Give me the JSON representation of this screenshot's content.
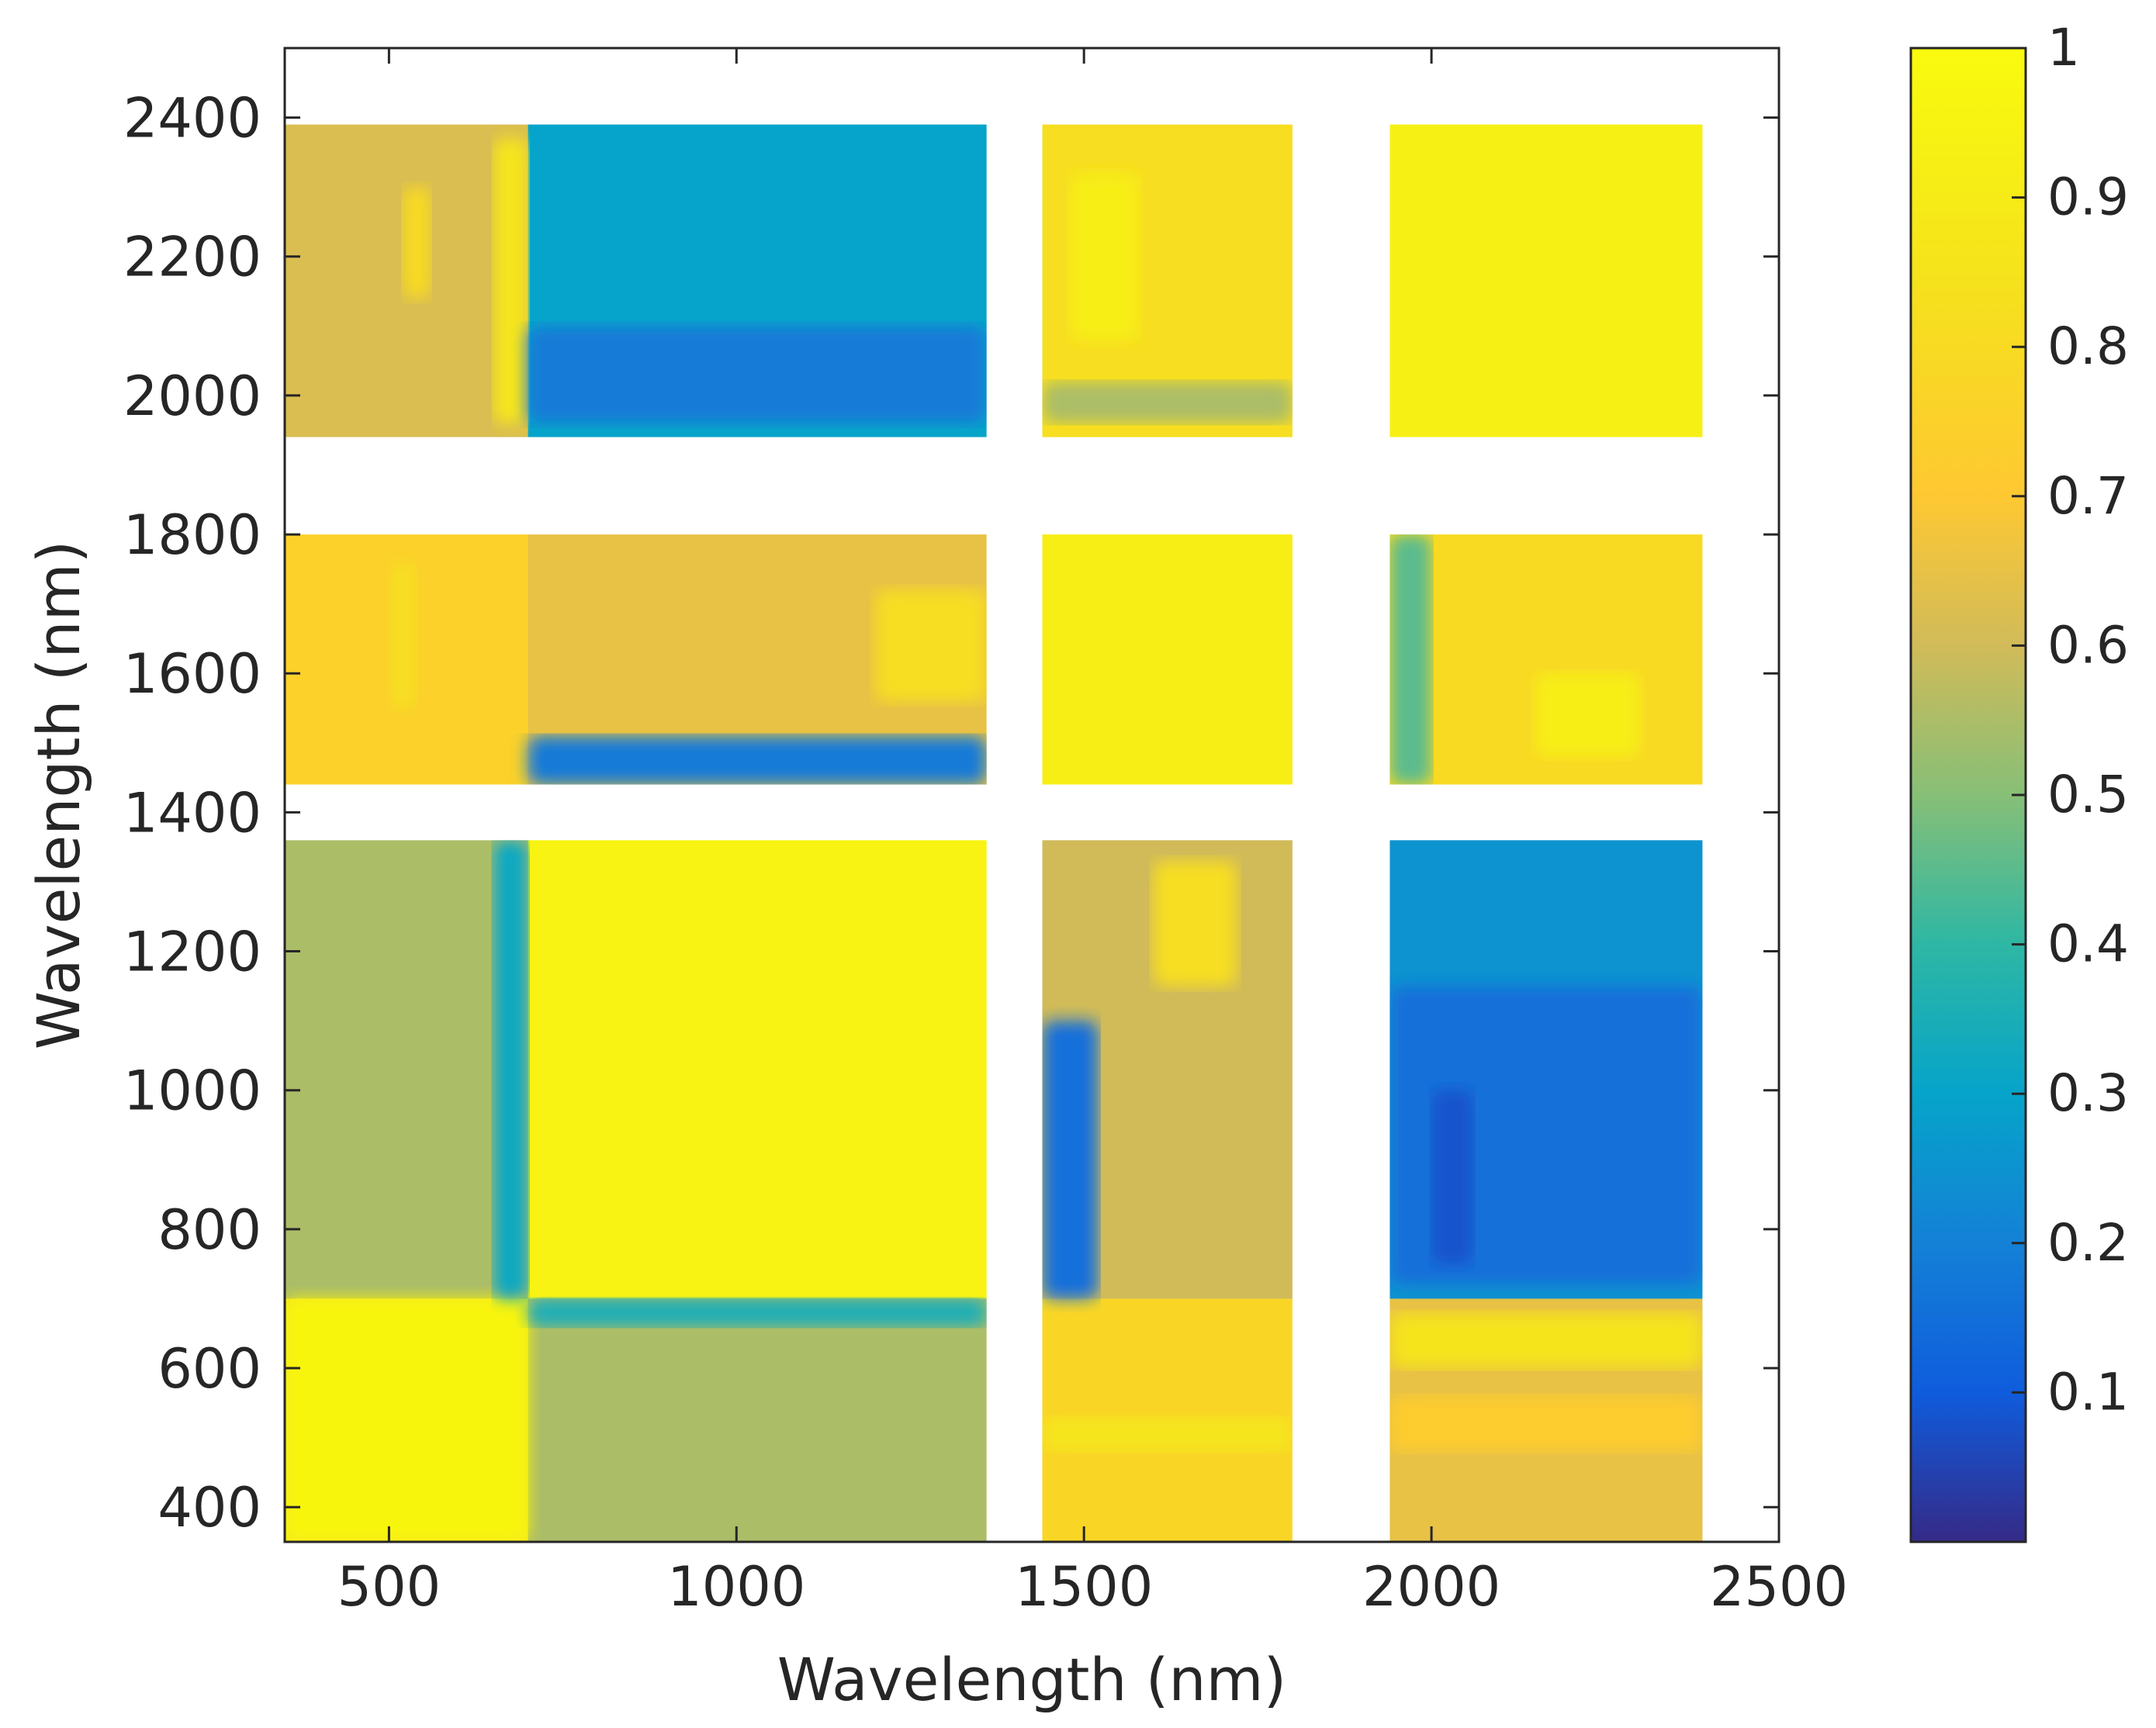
{
  "chart_data": {
    "type": "heatmap",
    "title": "",
    "xlabel": "Wavelength (nm)",
    "ylabel": "Wavelength (nm)",
    "xlim": [
      350,
      2500
    ],
    "ylim": [
      350,
      2500
    ],
    "x_ticks": [
      500,
      1000,
      1500,
      2000,
      2500
    ],
    "y_ticks": [
      400,
      600,
      800,
      1000,
      1200,
      1400,
      1600,
      1800,
      2000,
      2200,
      2400
    ],
    "colorbar": {
      "range": [
        0,
        1
      ],
      "ticks": [
        0.1,
        0.2,
        0.3,
        0.4,
        0.5,
        0.6,
        0.7,
        0.8,
        0.9,
        1
      ],
      "tick_labels": [
        "0.1",
        "0.2",
        "0.3",
        "0.4",
        "0.5",
        "0.6",
        "0.7",
        "0.8",
        "0.9",
        "1"
      ],
      "colormap": "parula"
    },
    "bands_nm": [
      [
        350,
        1360
      ],
      [
        1440,
        1800
      ],
      [
        1940,
        2390
      ]
    ],
    "cells": [
      {
        "x": [
          350,
          700
        ],
        "y": [
          350,
          700
        ],
        "value": 0.88
      },
      {
        "x": [
          700,
          1360
        ],
        "y": [
          350,
          700
        ],
        "value": 0.55
      },
      {
        "x": [
          1440,
          1800
        ],
        "y": [
          350,
          700
        ],
        "value": 0.78
      },
      {
        "x": [
          1940,
          2390
        ],
        "y": [
          350,
          700
        ],
        "value": 0.65
      },
      {
        "x": [
          350,
          700
        ],
        "y": [
          700,
          1360
        ],
        "value": 0.55
      },
      {
        "x": [
          700,
          1360
        ],
        "y": [
          700,
          1360
        ],
        "value": 0.95
      },
      {
        "x": [
          1440,
          1800
        ],
        "y": [
          700,
          1360
        ],
        "value": 0.6
      },
      {
        "x": [
          1940,
          2390
        ],
        "y": [
          700,
          1360
        ],
        "value": 0.25
      },
      {
        "x": [
          350,
          700
        ],
        "y": [
          1440,
          1800
        ],
        "value": 0.75
      },
      {
        "x": [
          700,
          1360
        ],
        "y": [
          1440,
          1800
        ],
        "value": 0.65
      },
      {
        "x": [
          1440,
          1800
        ],
        "y": [
          1440,
          1800
        ],
        "value": 0.92
      },
      {
        "x": [
          1940,
          2390
        ],
        "y": [
          1440,
          1800
        ],
        "value": 0.8
      },
      {
        "x": [
          350,
          700
        ],
        "y": [
          1940,
          2390
        ],
        "value": 0.62
      },
      {
        "x": [
          700,
          1360
        ],
        "y": [
          1940,
          2390
        ],
        "value": 0.3
      },
      {
        "x": [
          1440,
          1800
        ],
        "y": [
          1940,
          2390
        ],
        "value": 0.82
      },
      {
        "x": [
          1940,
          2390
        ],
        "y": [
          1940,
          2390
        ],
        "value": 0.93
      }
    ],
    "features": [
      {
        "x": [
          350,
          700
        ],
        "y": [
          350,
          700
        ],
        "value": 0.96
      },
      {
        "x": [
          500,
          540
        ],
        "y": [
          1550,
          1760
        ],
        "value": 0.82
      },
      {
        "x": [
          520,
          560
        ],
        "y": [
          2140,
          2300
        ],
        "value": 0.8
      },
      {
        "x": [
          650,
          700
        ],
        "y": [
          1960,
          2370
        ],
        "value": 0.86
      },
      {
        "x": [
          650,
          700
        ],
        "y": [
          700,
          1360
        ],
        "value": 0.32
      },
      {
        "x": [
          700,
          1360
        ],
        "y": [
          1440,
          1510
        ],
        "value": 0.18
      },
      {
        "x": [
          700,
          1360
        ],
        "y": [
          1960,
          2100
        ],
        "value": 0.18
      },
      {
        "x": [
          700,
          1360
        ],
        "y": [
          660,
          700
        ],
        "value": 0.35
      },
      {
        "x": [
          1200,
          1360
        ],
        "y": [
          1560,
          1720
        ],
        "value": 0.82
      },
      {
        "x": [
          1440,
          1520
        ],
        "y": [
          700,
          1100
        ],
        "value": 0.15
      },
      {
        "x": [
          1600,
          1720
        ],
        "y": [
          1150,
          1330
        ],
        "value": 0.82
      },
      {
        "x": [
          1440,
          1800
        ],
        "y": [
          480,
          530
        ],
        "value": 0.86
      },
      {
        "x": [
          1440,
          1800
        ],
        "y": [
          1960,
          2020
        ],
        "value": 0.55
      },
      {
        "x": [
          1480,
          1580
        ],
        "y": [
          2080,
          2320
        ],
        "value": 0.92
      },
      {
        "x": [
          1940,
          2390
        ],
        "y": [
          600,
          680
        ],
        "value": 0.85
      },
      {
        "x": [
          1940,
          2390
        ],
        "y": [
          720,
          1150
        ],
        "value": 0.15
      },
      {
        "x": [
          1940,
          2390
        ],
        "y": [
          480,
          560
        ],
        "value": 0.72
      },
      {
        "x": [
          2150,
          2300
        ],
        "y": [
          1480,
          1600
        ],
        "value": 0.92
      },
      {
        "x": [
          1940,
          2000
        ],
        "y": [
          1440,
          1800
        ],
        "value": 0.45
      },
      {
        "x": [
          2000,
          2060
        ],
        "y": [
          750,
          1000
        ],
        "value": 0.08
      }
    ]
  }
}
